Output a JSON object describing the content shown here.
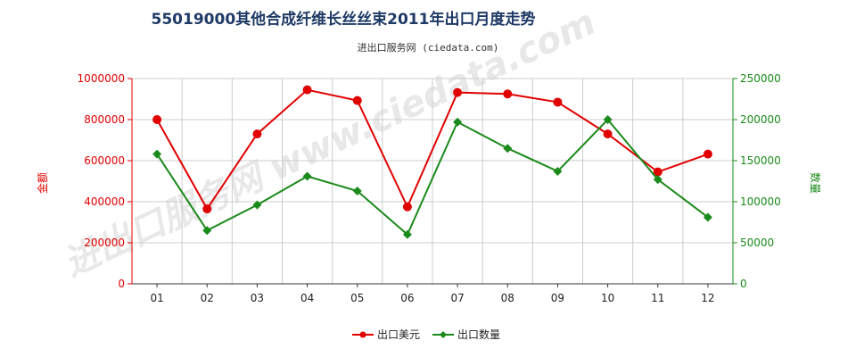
{
  "chart_data": {
    "type": "line",
    "title": "55019000其他合成纤维长丝丝束2011年出口月度走势",
    "subtitle": "进出口服务网 (ciedata.com)",
    "watermark": "进出口服务网 www.ciedata.com",
    "categories": [
      "01",
      "02",
      "03",
      "04",
      "05",
      "06",
      "07",
      "08",
      "09",
      "10",
      "11",
      "12"
    ],
    "y_left": {
      "label": "金额",
      "ylim": [
        0,
        1000000
      ],
      "ticks": [
        "0",
        "200000",
        "400000",
        "600000",
        "800000",
        "1000000"
      ],
      "color": "#e00000"
    },
    "y_right": {
      "label": "数量",
      "ylim": [
        0,
        250000
      ],
      "ticks": [
        "0",
        "50000",
        "100000",
        "150000",
        "200000",
        "250000"
      ],
      "color": "#1a8a1a"
    },
    "series": [
      {
        "name": "出口美元",
        "axis": "left",
        "color": "#e00000",
        "marker": "circle",
        "values": [
          800000,
          365000,
          730000,
          945000,
          893000,
          375000,
          932000,
          925000,
          885000,
          730000,
          545000,
          632000
        ]
      },
      {
        "name": "出口数量",
        "axis": "right",
        "color": "#1a8a1a",
        "marker": "diamond",
        "values": [
          158000,
          65000,
          96000,
          131000,
          113000,
          60000,
          197000,
          165000,
          137000,
          200000,
          127000,
          81000
        ]
      }
    ],
    "grid": true,
    "legend": "bottom"
  }
}
